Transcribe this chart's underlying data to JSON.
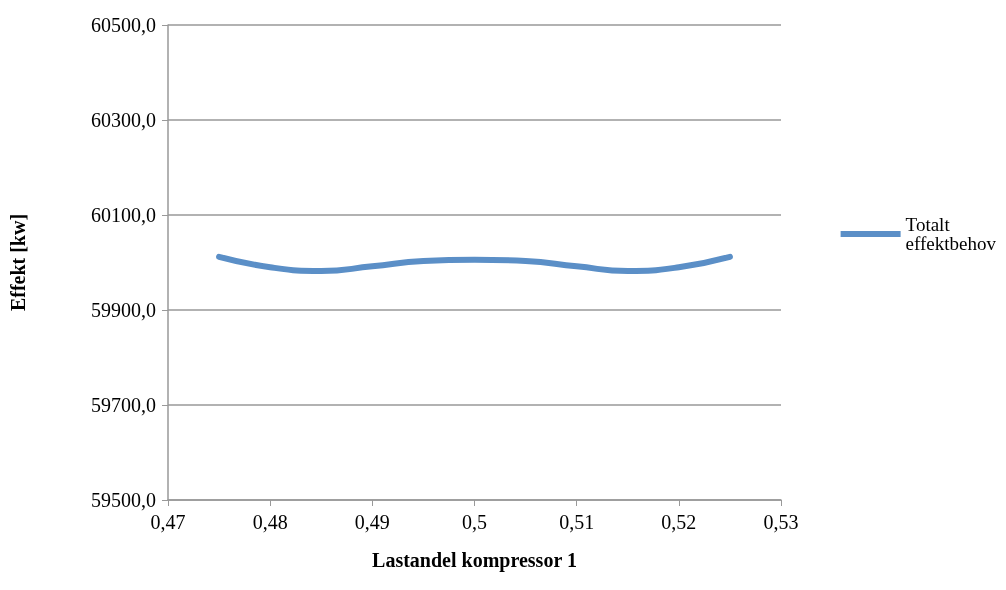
{
  "chart_data": {
    "type": "line",
    "xlabel": "Lastandel kompressor 1",
    "ylabel": "Effekt [kw]",
    "x": [
      0.475,
      0.48,
      0.485,
      0.49,
      0.495,
      0.5,
      0.505,
      0.51,
      0.515,
      0.52,
      0.525
    ],
    "series": [
      {
        "name": "Totalt effektbehov",
        "color": "#5b8fc7",
        "values": [
          60012,
          59990,
          59982,
          59992,
          60003,
          60006,
          60003,
          59992,
          59982,
          59990,
          60012
        ]
      }
    ],
    "xlim": [
      0.47,
      0.53
    ],
    "xticks": [
      {
        "value": 0.47,
        "label": "0,47"
      },
      {
        "value": 0.48,
        "label": "0,48"
      },
      {
        "value": 0.49,
        "label": "0,49"
      },
      {
        "value": 0.5,
        "label": "0,5"
      },
      {
        "value": 0.51,
        "label": "0,51"
      },
      {
        "value": 0.52,
        "label": "0,52"
      },
      {
        "value": 0.53,
        "label": "0,53"
      }
    ],
    "ylim": [
      59500,
      60500
    ],
    "yticks": [
      {
        "value": 59500,
        "label": "59500,0"
      },
      {
        "value": 59700,
        "label": "59700,0"
      },
      {
        "value": 59900,
        "label": "59900,0"
      },
      {
        "value": 60100,
        "label": "60100,0"
      },
      {
        "value": 60300,
        "label": "60300,0"
      },
      {
        "value": 60500,
        "label": "60500,0"
      }
    ],
    "grid": "y",
    "legend": "right",
    "marker": "none",
    "line_style": "solid"
  }
}
